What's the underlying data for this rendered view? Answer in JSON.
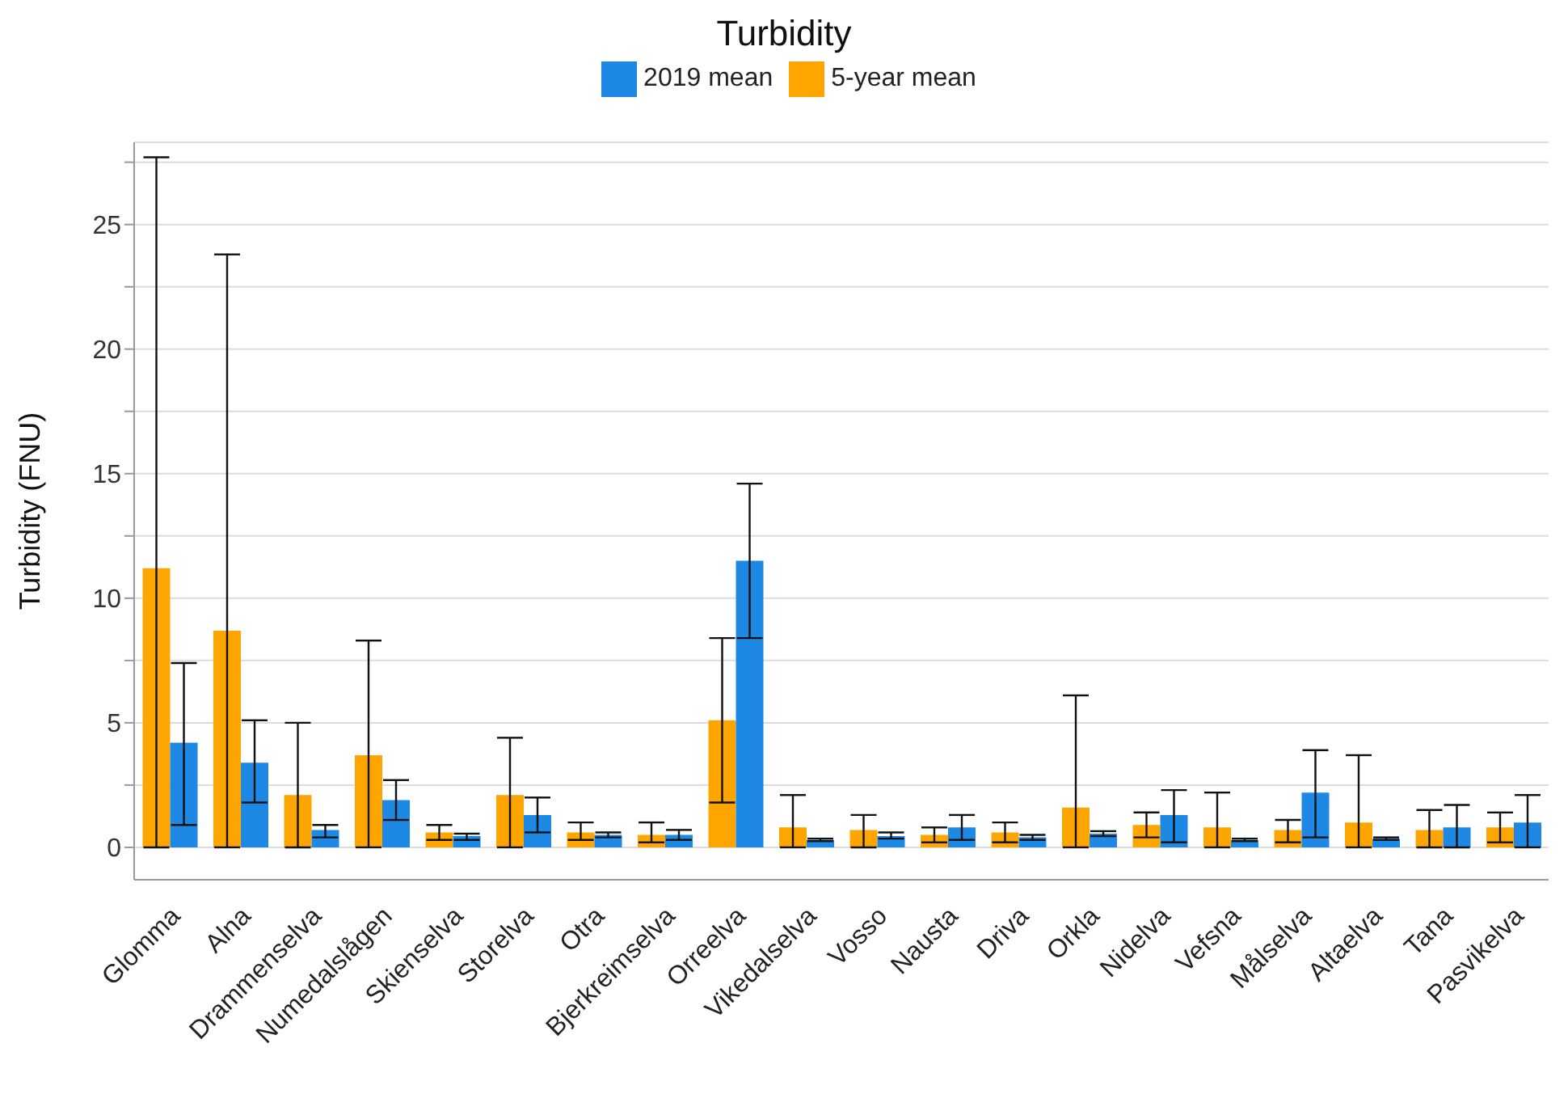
{
  "chart_data": {
    "type": "bar",
    "title": "Turbidity",
    "ylabel": "Turbidity (FNU)",
    "categories": [
      "Glomma",
      "Alna",
      "Drammenselva",
      "Numedalslågen",
      "Skienselva",
      "Storelva",
      "Otra",
      "Bjerkreimselva",
      "Orreelva",
      "Vikedalselva",
      "Vosso",
      "Nausta",
      "Driva",
      "Orkla",
      "Nidelva",
      "Vefsna",
      "Målselva",
      "Altaelva",
      "Tana",
      "Pasvikelva"
    ],
    "series": [
      {
        "name": "5-year mean",
        "color": "#ffa500",
        "values": [
          11.2,
          8.7,
          2.1,
          3.7,
          0.6,
          2.1,
          0.6,
          0.5,
          5.1,
          0.8,
          0.7,
          0.5,
          0.6,
          1.6,
          0.9,
          0.8,
          0.7,
          1.0,
          0.7,
          0.8
        ],
        "errors": [
          [
            0,
            27.7
          ],
          [
            0,
            23.8
          ],
          [
            0,
            5.0
          ],
          [
            0,
            8.3
          ],
          [
            0.3,
            0.9
          ],
          [
            0,
            4.4
          ],
          [
            0.3,
            1.0
          ],
          [
            0.2,
            1.0
          ],
          [
            1.8,
            8.4
          ],
          [
            0,
            2.1
          ],
          [
            0,
            1.3
          ],
          [
            0.2,
            0.8
          ],
          [
            0.2,
            1.0
          ],
          [
            0,
            6.1
          ],
          [
            0.4,
            1.4
          ],
          [
            0,
            2.2
          ],
          [
            0.2,
            1.1
          ],
          [
            0,
            3.7
          ],
          [
            0,
            1.5
          ],
          [
            0.2,
            1.4
          ]
        ]
      },
      {
        "name": "2019 mean",
        "color": "#1e88e5",
        "values": [
          4.2,
          3.4,
          0.7,
          1.9,
          0.45,
          1.3,
          0.5,
          0.5,
          11.5,
          0.3,
          0.45,
          0.8,
          0.4,
          0.55,
          1.3,
          0.3,
          2.2,
          0.35,
          0.8,
          1.0
        ],
        "errors": [
          [
            0.9,
            7.4
          ],
          [
            1.8,
            5.1
          ],
          [
            0.4,
            0.9
          ],
          [
            1.1,
            2.7
          ],
          [
            0.3,
            0.55
          ],
          [
            0.6,
            2.0
          ],
          [
            0.4,
            0.6
          ],
          [
            0.3,
            0.7
          ],
          [
            8.4,
            14.6
          ],
          [
            0.25,
            0.35
          ],
          [
            0.35,
            0.6
          ],
          [
            0.3,
            1.3
          ],
          [
            0.3,
            0.5
          ],
          [
            0.45,
            0.65
          ],
          [
            0.2,
            2.3
          ],
          [
            0.25,
            0.35
          ],
          [
            0.4,
            3.9
          ],
          [
            0.3,
            0.4
          ],
          [
            0,
            1.7
          ],
          [
            0,
            2.1
          ]
        ]
      }
    ],
    "ylim": [
      -1.3,
      28.3
    ],
    "yticks": [
      0,
      {
        "value": 2.5,
        "label": null
      },
      5,
      {
        "value": 7.5,
        "label": null
      },
      10,
      {
        "value": 12.5,
        "label": null
      },
      15,
      {
        "value": 17.5,
        "label": null
      },
      20,
      {
        "value": 22.5,
        "label": null
      },
      25,
      {
        "value": 27.5,
        "label": null
      }
    ],
    "grid": "y",
    "legend": "top"
  }
}
